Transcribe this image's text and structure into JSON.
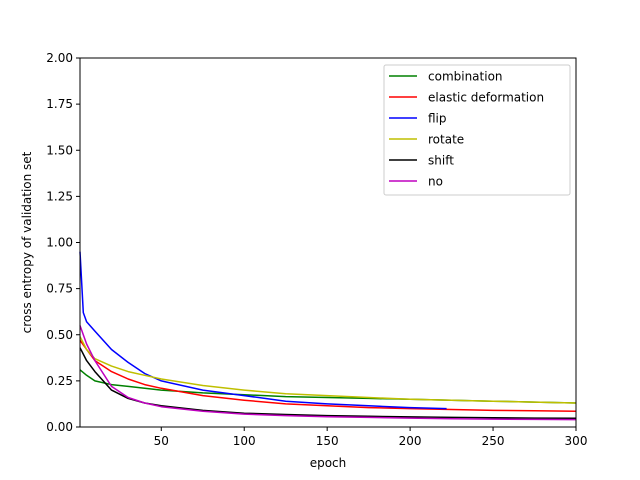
{
  "chart_data": {
    "type": "line",
    "title": "",
    "xlabel": "epoch",
    "ylabel": "cross entropy of validation set",
    "xlim": [
      1,
      300
    ],
    "ylim": [
      0,
      2.0
    ],
    "xticks": [
      50,
      100,
      150,
      200,
      250,
      300
    ],
    "xtick_labels": [
      "50",
      "100",
      "150",
      "200",
      "250",
      "300"
    ],
    "yticks": [
      0,
      0.25,
      0.5,
      0.75,
      1.0,
      1.25,
      1.5,
      1.75,
      2.0
    ],
    "ytick_labels": [
      "0.00",
      "0.25",
      "0.50",
      "0.75",
      "1.00",
      "1.25",
      "1.50",
      "1.75",
      "2.00"
    ],
    "grid": false,
    "legend_position": "top-right",
    "series": [
      {
        "name": "combination",
        "color": "#008000",
        "x": [
          1,
          5,
          10,
          20,
          30,
          40,
          50,
          75,
          100,
          125,
          150,
          175,
          200,
          225,
          250,
          275,
          300
        ],
        "y": [
          0.31,
          0.28,
          0.25,
          0.23,
          0.22,
          0.21,
          0.2,
          0.185,
          0.175,
          0.165,
          0.16,
          0.155,
          0.15,
          0.145,
          0.14,
          0.135,
          0.13
        ]
      },
      {
        "name": "elastic deformation",
        "color": "#ff0000",
        "x": [
          1,
          5,
          10,
          20,
          30,
          40,
          50,
          75,
          100,
          125,
          150,
          175,
          200,
          225,
          250,
          275,
          300
        ],
        "y": [
          0.47,
          0.42,
          0.36,
          0.3,
          0.26,
          0.23,
          0.21,
          0.17,
          0.145,
          0.125,
          0.115,
          0.105,
          0.1,
          0.095,
          0.09,
          0.088,
          0.085
        ]
      },
      {
        "name": "flip",
        "color": "#0000ff",
        "x": [
          1,
          3,
          5,
          10,
          20,
          30,
          40,
          50,
          75,
          100,
          125,
          150,
          175,
          200,
          222
        ],
        "y": [
          0.95,
          0.62,
          0.57,
          0.52,
          0.42,
          0.35,
          0.29,
          0.25,
          0.2,
          0.17,
          0.14,
          0.125,
          0.115,
          0.105,
          0.1
        ]
      },
      {
        "name": "rotate",
        "color": "#bfbf00",
        "x": [
          1,
          5,
          10,
          20,
          30,
          40,
          50,
          75,
          100,
          125,
          150,
          175,
          200,
          225,
          250,
          275,
          300
        ],
        "y": [
          0.49,
          0.42,
          0.37,
          0.33,
          0.3,
          0.28,
          0.26,
          0.225,
          0.2,
          0.18,
          0.17,
          0.16,
          0.15,
          0.145,
          0.14,
          0.135,
          0.13
        ]
      },
      {
        "name": "shift",
        "color": "#000000",
        "x": [
          1,
          5,
          10,
          20,
          30,
          40,
          50,
          75,
          100,
          125,
          150,
          175,
          200,
          225,
          250,
          275,
          300
        ],
        "y": [
          0.43,
          0.36,
          0.3,
          0.2,
          0.155,
          0.13,
          0.115,
          0.09,
          0.075,
          0.068,
          0.062,
          0.058,
          0.055,
          0.052,
          0.05,
          0.048,
          0.047
        ]
      },
      {
        "name": "no",
        "color": "#bf00bf",
        "x": [
          1,
          5,
          10,
          20,
          30,
          40,
          50,
          75,
          100,
          125,
          150,
          175,
          200,
          225,
          250,
          275,
          300
        ],
        "y": [
          0.55,
          0.45,
          0.36,
          0.22,
          0.16,
          0.13,
          0.11,
          0.085,
          0.07,
          0.062,
          0.056,
          0.052,
          0.048,
          0.045,
          0.043,
          0.041,
          0.04
        ]
      }
    ]
  }
}
